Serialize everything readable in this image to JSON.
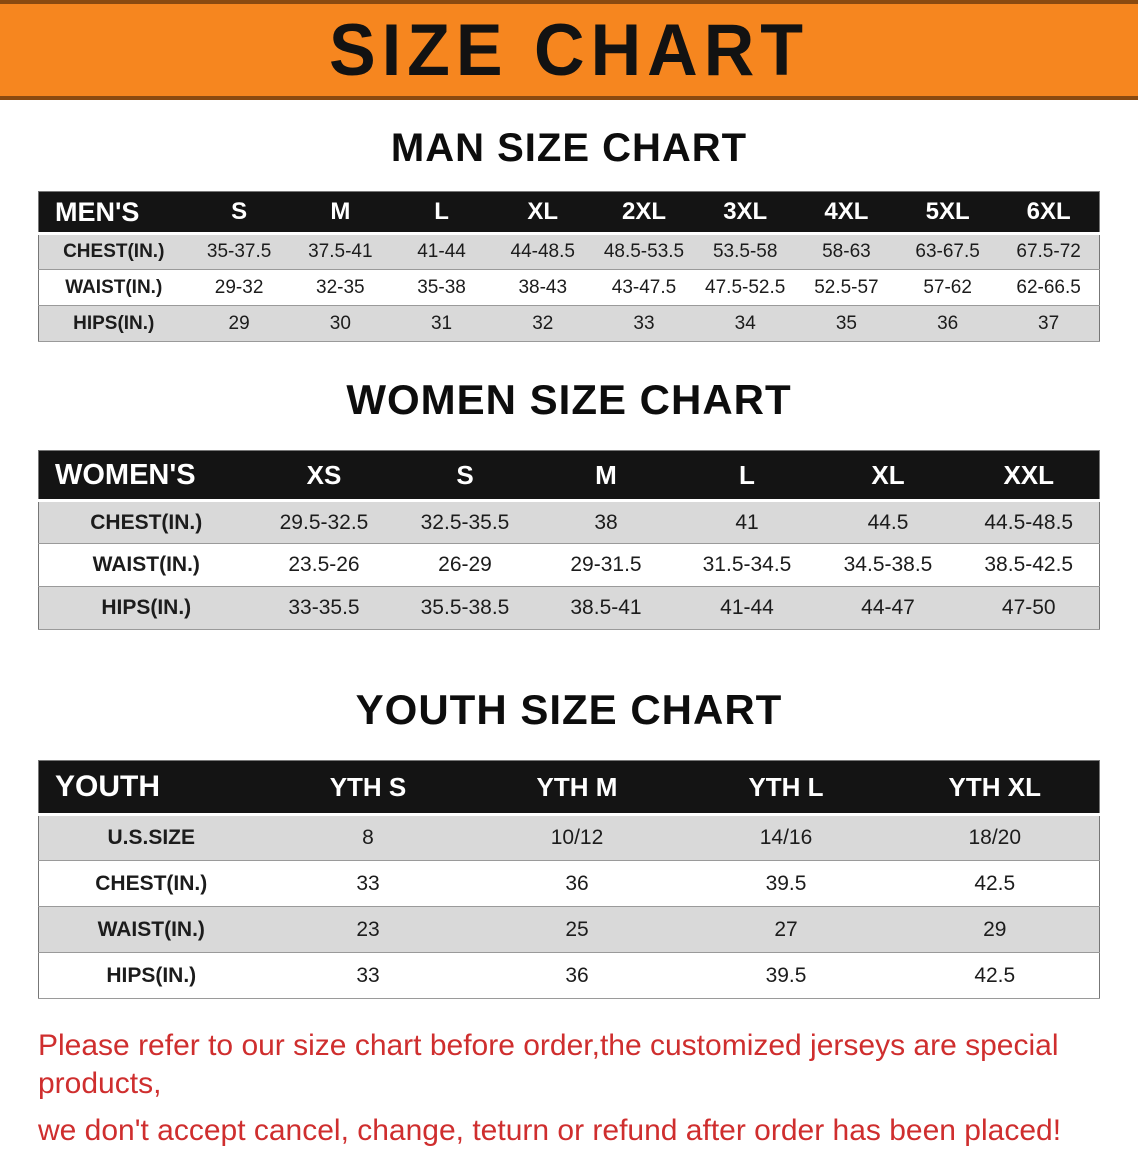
{
  "banner": {
    "title": "SIZE CHART"
  },
  "colors": {
    "banner_orange": "#f6861f",
    "header_black": "#141414",
    "row_gray": "#d9d9d9",
    "note_red": "#cf2e2e"
  },
  "sections": [
    {
      "heading": "MAN SIZE CHART",
      "table": {
        "header": [
          "MEN'S",
          "S",
          "M",
          "L",
          "XL",
          "2XL",
          "3XL",
          "4XL",
          "5XL",
          "6XL"
        ],
        "rows": [
          [
            "CHEST(IN.)",
            "35-37.5",
            "37.5-41",
            "41-44",
            "44-48.5",
            "48.5-53.5",
            "53.5-58",
            "58-63",
            "63-67.5",
            "67.5-72"
          ],
          [
            "WAIST(IN.)",
            "29-32",
            "32-35",
            "35-38",
            "38-43",
            "43-47.5",
            "47.5-52.5",
            "52.5-57",
            "57-62",
            "62-66.5"
          ],
          [
            "HIPS(IN.)",
            "29",
            "30",
            "31",
            "32",
            "33",
            "34",
            "35",
            "36",
            "37"
          ]
        ]
      }
    },
    {
      "heading": "WOMEN SIZE CHART",
      "table": {
        "header": [
          "WOMEN'S",
          "XS",
          "S",
          "M",
          "L",
          "XL",
          "XXL"
        ],
        "rows": [
          [
            "CHEST(IN.)",
            "29.5-32.5",
            "32.5-35.5",
            "38",
            "41",
            "44.5",
            "44.5-48.5"
          ],
          [
            "WAIST(IN.)",
            "23.5-26",
            "26-29",
            "29-31.5",
            "31.5-34.5",
            "34.5-38.5",
            "38.5-42.5"
          ],
          [
            "HIPS(IN.)",
            "33-35.5",
            "35.5-38.5",
            "38.5-41",
            "41-44",
            "44-47",
            "47-50"
          ]
        ]
      }
    },
    {
      "heading": "YOUTH SIZE CHART",
      "table": {
        "header": [
          "YOUTH",
          "YTH S",
          "YTH M",
          "YTH L",
          "YTH XL"
        ],
        "rows": [
          [
            "U.S.SIZE",
            "8",
            "10/12",
            "14/16",
            "18/20"
          ],
          [
            "CHEST(IN.)",
            "33",
            "36",
            "39.5",
            "42.5"
          ],
          [
            "WAIST(IN.)",
            "23",
            "25",
            "27",
            "29"
          ],
          [
            "HIPS(IN.)",
            "33",
            "36",
            "39.5",
            "42.5"
          ]
        ]
      }
    }
  ],
  "footer": {
    "line1": "Please refer to our size chart before order,the customized jerseys are special products,",
    "line2": "we don't accept cancel, change, teturn or refund after order has been placed!"
  }
}
